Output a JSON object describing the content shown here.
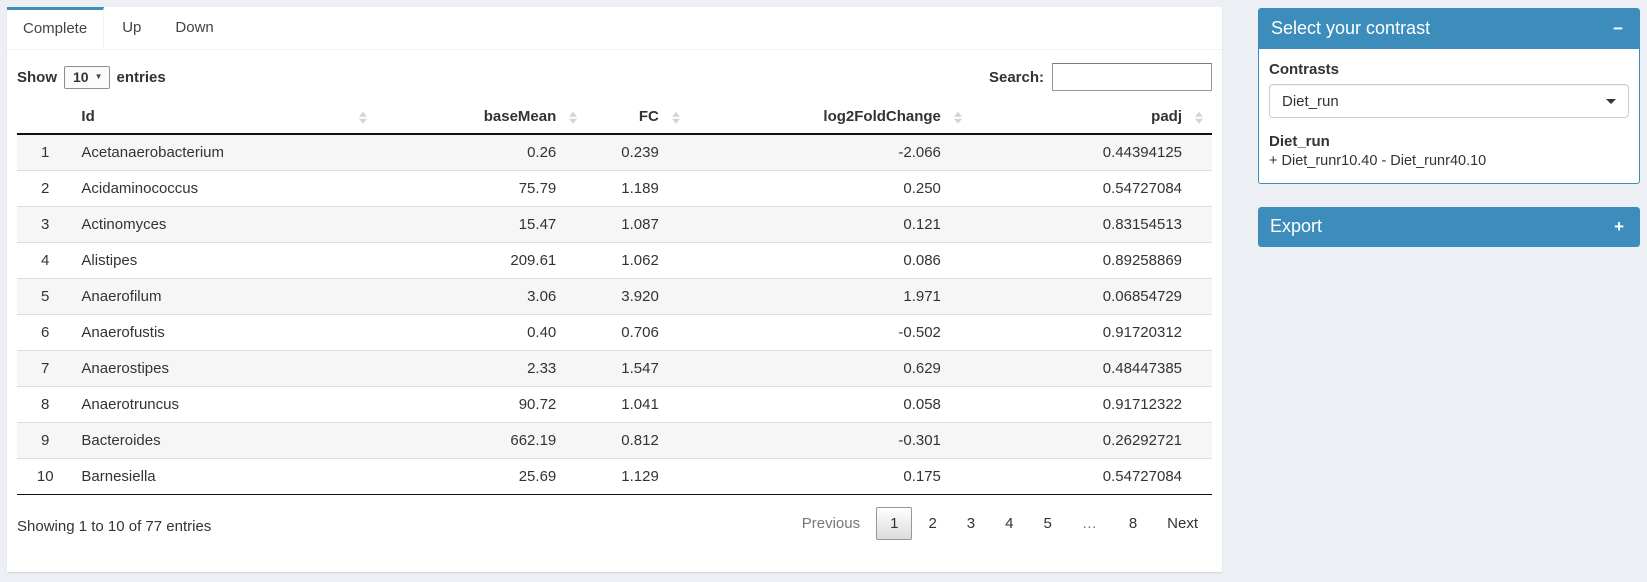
{
  "page": {
    "background": "#ecf0f5",
    "accent": "#3c8dbc"
  },
  "tabs": [
    {
      "label": "Complete",
      "active": true
    },
    {
      "label": "Up",
      "active": false
    },
    {
      "label": "Down",
      "active": false
    }
  ],
  "length_menu": {
    "label_before": "Show",
    "selected": "10",
    "label_after": "entries"
  },
  "search": {
    "label": "Search:",
    "value": ""
  },
  "table": {
    "columns": [
      {
        "label": "",
        "sortable": false,
        "align": "center"
      },
      {
        "label": "Id",
        "sortable": true,
        "align": "left"
      },
      {
        "label": "baseMean",
        "sortable": true,
        "align": "right"
      },
      {
        "label": "FC",
        "sortable": true,
        "align": "right"
      },
      {
        "label": "log2FoldChange",
        "sortable": true,
        "align": "right"
      },
      {
        "label": "padj",
        "sortable": true,
        "align": "right"
      }
    ],
    "rows": [
      {
        "num": "1",
        "id": "Acetanaerobacterium",
        "baseMean": "0.26",
        "fc": "0.239",
        "log2FoldChange": "-2.066",
        "padj": "0.44394125"
      },
      {
        "num": "2",
        "id": "Acidaminococcus",
        "baseMean": "75.79",
        "fc": "1.189",
        "log2FoldChange": "0.250",
        "padj": "0.54727084"
      },
      {
        "num": "3",
        "id": "Actinomyces",
        "baseMean": "15.47",
        "fc": "1.087",
        "log2FoldChange": "0.121",
        "padj": "0.83154513"
      },
      {
        "num": "4",
        "id": "Alistipes",
        "baseMean": "209.61",
        "fc": "1.062",
        "log2FoldChange": "0.086",
        "padj": "0.89258869"
      },
      {
        "num": "5",
        "id": "Anaerofilum",
        "baseMean": "3.06",
        "fc": "3.920",
        "log2FoldChange": "1.971",
        "padj": "0.06854729"
      },
      {
        "num": "6",
        "id": "Anaerofustis",
        "baseMean": "0.40",
        "fc": "0.706",
        "log2FoldChange": "-0.502",
        "padj": "0.91720312"
      },
      {
        "num": "7",
        "id": "Anaerostipes",
        "baseMean": "2.33",
        "fc": "1.547",
        "log2FoldChange": "0.629",
        "padj": "0.48447385"
      },
      {
        "num": "8",
        "id": "Anaerotruncus",
        "baseMean": "90.72",
        "fc": "1.041",
        "log2FoldChange": "0.058",
        "padj": "0.91712322"
      },
      {
        "num": "9",
        "id": "Bacteroides",
        "baseMean": "662.19",
        "fc": "0.812",
        "log2FoldChange": "-0.301",
        "padj": "0.26292721"
      },
      {
        "num": "10",
        "id": "Barnesiella",
        "baseMean": "25.69",
        "fc": "1.129",
        "log2FoldChange": "0.175",
        "padj": "0.54727084"
      }
    ]
  },
  "footer": {
    "info": "Showing 1 to 10 of 77 entries",
    "pagination": [
      {
        "label": "Previous",
        "state": "disabled"
      },
      {
        "label": "1",
        "state": "active"
      },
      {
        "label": "2",
        "state": "link"
      },
      {
        "label": "3",
        "state": "link"
      },
      {
        "label": "4",
        "state": "link"
      },
      {
        "label": "5",
        "state": "link"
      },
      {
        "label": "…",
        "state": "ellipsis"
      },
      {
        "label": "8",
        "state": "link"
      },
      {
        "label": "Next",
        "state": "link"
      }
    ]
  },
  "contrast_panel": {
    "title": "Select your contrast",
    "collapse_icon": "−",
    "contrasts_label": "Contrasts",
    "selected_contrast": "Diet_run",
    "contrast_name": "Diet_run",
    "contrast_formula": "+ Diet_runr10.40 - Diet_runr40.10"
  },
  "export_panel": {
    "title": "Export",
    "collapse_icon": "+"
  }
}
